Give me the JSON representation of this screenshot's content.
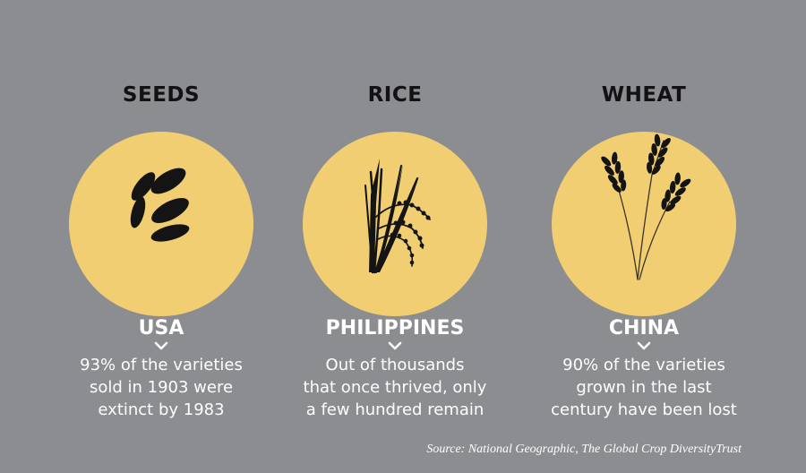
{
  "background_color": "#8c8d91",
  "circle_color": "#f2ce72",
  "columns": [
    {
      "heading": "SEEDS",
      "icon": "seeds-icon",
      "country": "USA",
      "description": [
        "93% of the varieties",
        "sold in 1903 were",
        "extinct by 1983"
      ]
    },
    {
      "heading": "RICE",
      "icon": "rice-icon",
      "country": "PHILIPPINES",
      "description": [
        "Out of thousands",
        "that once thrived, only",
        "a few hundred remain"
      ]
    },
    {
      "heading": "WHEAT",
      "icon": "wheat-icon",
      "country": "CHINA",
      "description": [
        "90% of the varieties",
        "grown in the last",
        "century have been lost"
      ]
    }
  ],
  "source": "Source: National Geographic, The Global Crop DiversityTrust"
}
